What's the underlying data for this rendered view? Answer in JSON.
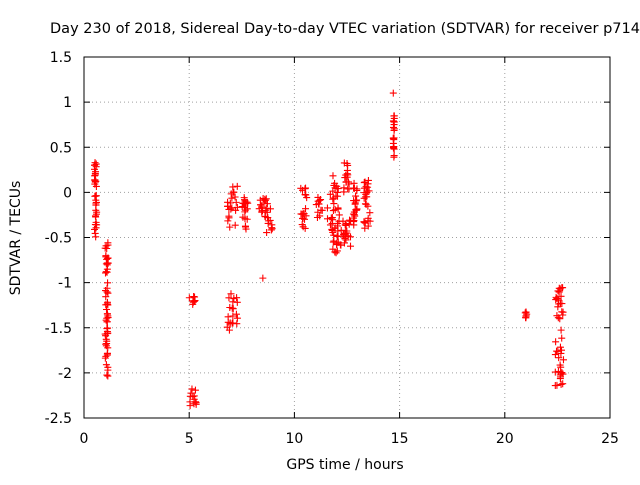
{
  "chart_data": {
    "type": "scatter",
    "title": "Day 230 of 2018, Sidereal Day-to-day VTEC variation (SDTVAR) for receiver p714",
    "xlabel": "GPS time / hours",
    "ylabel": "SDTVAR / TECUs",
    "xlim": [
      0,
      25
    ],
    "ylim": [
      -2.5,
      1.5
    ],
    "xticks": [
      0,
      5,
      10,
      15,
      20,
      25
    ],
    "yticks": [
      -2.5,
      -2,
      -1.5,
      -1,
      -0.5,
      0,
      0.5,
      1,
      1.5
    ],
    "grid": true,
    "marker": "plus",
    "colors": {
      "series": "#ff0000",
      "grid": "#a0a0a0",
      "axis": "#000000"
    },
    "clusters": [
      {
        "x": [
          0.5,
          0.6
        ],
        "y": [
          -0.5,
          0.35
        ]
      },
      {
        "x": [
          1.0,
          1.15
        ],
        "y": [
          -2.05,
          -0.55
        ]
      },
      {
        "x": [
          5.0,
          5.3
        ],
        "y": [
          -1.25,
          -1.15
        ]
      },
      {
        "x": [
          5.0,
          5.35
        ],
        "y": [
          -2.38,
          -2.15
        ]
      },
      {
        "x": [
          6.8,
          7.3
        ],
        "y": [
          -0.4,
          0.08
        ]
      },
      {
        "x": [
          6.8,
          7.3
        ],
        "y": [
          -1.55,
          -1.1
        ]
      },
      {
        "x": [
          7.5,
          7.8
        ],
        "y": [
          -0.5,
          -0.05
        ]
      },
      {
        "x": [
          8.3,
          8.6
        ],
        "y": [
          -0.25,
          -0.05
        ]
      },
      {
        "x": [
          8.6,
          8.95
        ],
        "y": [
          -0.45,
          -0.05
        ]
      },
      {
        "x": [
          10.3,
          10.6
        ],
        "y": [
          -0.4,
          0.05
        ]
      },
      {
        "x": [
          11.0,
          11.6
        ],
        "y": [
          -0.3,
          -0.05
        ]
      },
      {
        "x": [
          11.7,
          12.1
        ],
        "y": [
          -0.68,
          0.2
        ]
      },
      {
        "x": [
          12.0,
          12.5
        ],
        "y": [
          -0.6,
          -0.2
        ]
      },
      {
        "x": [
          12.3,
          12.6
        ],
        "y": [
          0.0,
          0.35
        ]
      },
      {
        "x": [
          12.4,
          12.7
        ],
        "y": [
          -0.6,
          -0.3
        ]
      },
      {
        "x": [
          12.8,
          13.0
        ],
        "y": [
          -0.4,
          0.1
        ]
      },
      {
        "x": [
          13.3,
          13.6
        ],
        "y": [
          -0.4,
          0.2
        ]
      },
      {
        "x": [
          14.7,
          14.75
        ],
        "y": [
          0.38,
          0.85
        ]
      },
      {
        "x": [
          20.95,
          21.05
        ],
        "y": [
          -1.42,
          -1.32
        ]
      },
      {
        "x": [
          22.4,
          22.8
        ],
        "y": [
          -2.15,
          -1.05
        ]
      }
    ],
    "singles": [
      {
        "x": 8.5,
        "y": -0.95
      },
      {
        "x": 14.7,
        "y": 1.1
      },
      {
        "x": 0.6,
        "y": -0.22
      },
      {
        "x": 0.5,
        "y": 0.3
      }
    ]
  }
}
